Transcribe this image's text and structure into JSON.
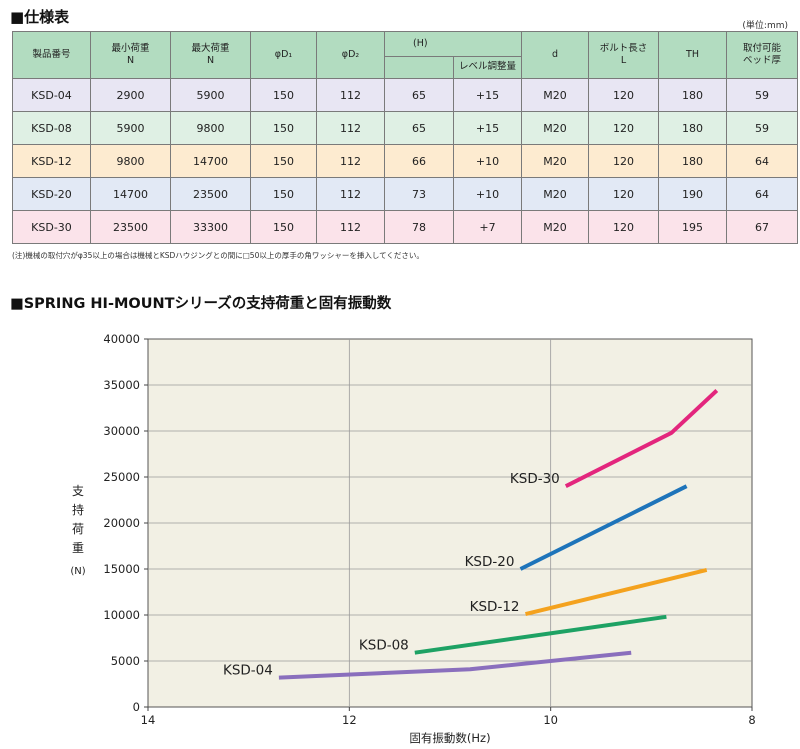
{
  "spec_table": {
    "title": "■仕様表",
    "unit": "(単位:mm)",
    "headers": {
      "product": "製品番号",
      "min_load": [
        "最小荷重",
        "N"
      ],
      "max_load": [
        "最大荷重",
        "N"
      ],
      "d1": "φD₁",
      "d2": "φD₂",
      "h": "(H)",
      "level": "レベル調整量",
      "d": "d",
      "bolt": [
        "ボルト長さ",
        "L"
      ],
      "th": "TH",
      "pad": [
        "取付可能",
        "ベッド厚"
      ]
    },
    "rows": [
      {
        "bg": "#e8e6f3",
        "cells": [
          "KSD-04",
          "2900",
          "5900",
          "150",
          "112",
          "65",
          "+15",
          "M20",
          "120",
          "180",
          "59"
        ]
      },
      {
        "bg": "#dff0e4",
        "cells": [
          "KSD-08",
          "5900",
          "9800",
          "150",
          "112",
          "65",
          "+15",
          "M20",
          "120",
          "180",
          "59"
        ]
      },
      {
        "bg": "#fdebd0",
        "cells": [
          "KSD-12",
          "9800",
          "14700",
          "150",
          "112",
          "66",
          "+10",
          "M20",
          "120",
          "180",
          "64"
        ]
      },
      {
        "bg": "#e2e9f5",
        "cells": [
          "KSD-20",
          "14700",
          "23500",
          "150",
          "112",
          "73",
          "+10",
          "M20",
          "120",
          "190",
          "64"
        ]
      },
      {
        "bg": "#fbe3ea",
        "cells": [
          "KSD-30",
          "23500",
          "33300",
          "150",
          "112",
          "78",
          "+7",
          "M20",
          "120",
          "195",
          "67"
        ]
      }
    ],
    "footnote": "(注)機械の取付穴がφ35以上の場合は機械とKSDハウジングとの間に□50以上の厚手の角ワッシャーを挿入してください。",
    "header_bg": "#b2dcc0"
  },
  "chart_title": "■SPRING HI-MOUNTシリーズの支持荷重と固有振動数",
  "chart_data": {
    "type": "line",
    "xlabel": "固有振動数(Hz)",
    "ylabel_chars": [
      "支",
      "持",
      "荷",
      "重"
    ],
    "ylabel_unit": "(N)",
    "xlim": [
      14,
      8
    ],
    "ylim": [
      0,
      40000
    ],
    "xticks": [
      14,
      12,
      10,
      8
    ],
    "yticks": [
      0,
      5000,
      10000,
      15000,
      20000,
      25000,
      30000,
      35000,
      40000
    ],
    "grid": true,
    "plot_bg": "#f2f0e4",
    "series": [
      {
        "name": "KSD-04",
        "color": "#8a6fbd",
        "x": [
          12.7,
          10.8,
          9.2
        ],
        "y": [
          3200,
          4100,
          5900
        ]
      },
      {
        "name": "KSD-08",
        "color": "#1ea264",
        "x": [
          11.35,
          8.85
        ],
        "y": [
          5900,
          9800
        ]
      },
      {
        "name": "KSD-12",
        "color": "#f4a21e",
        "x": [
          10.25,
          8.45
        ],
        "y": [
          10100,
          14900
        ]
      },
      {
        "name": "KSD-20",
        "color": "#1e74ba",
        "x": [
          10.3,
          8.65
        ],
        "y": [
          15000,
          24000
        ]
      },
      {
        "name": "KSD-30",
        "color": "#e3267d",
        "x": [
          9.85,
          8.8,
          8.35
        ],
        "y": [
          24000,
          29800,
          34400
        ]
      }
    ]
  }
}
